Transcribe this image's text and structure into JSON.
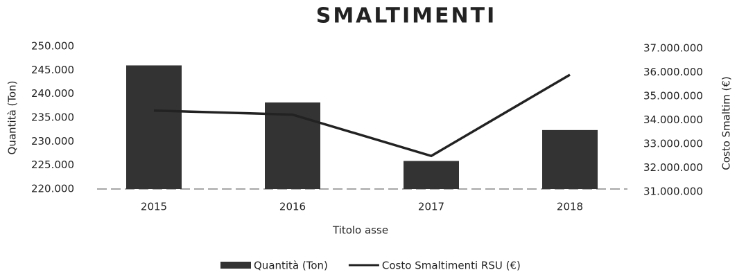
{
  "chart_data": {
    "type": "combo",
    "title": "SMALTIMENTI",
    "x_label": "Titolo asse",
    "y_label": "Quantità (Ton)",
    "y2_label": "Costo Smaltim (€)",
    "categories": [
      "2015",
      "2016",
      "2017",
      "2018"
    ],
    "series": [
      {
        "name": "Quantità (Ton)",
        "type": "bar",
        "color": "#333333",
        "values": [
          246000,
          238200,
          225900,
          232400
        ]
      },
      {
        "name": "Costo Smaltimenti RSU (€)",
        "type": "line",
        "axis": "y2",
        "color": "#222222",
        "values": [
          34400000,
          34230000,
          32500000,
          35900000
        ]
      }
    ],
    "ylim": [
      220000,
      250000
    ],
    "yticks": [
      {
        "value": 220000,
        "label": "220.000"
      },
      {
        "value": 225000,
        "label": "225.000"
      },
      {
        "value": 230000,
        "label": "230.000"
      },
      {
        "value": 235000,
        "label": "235.000"
      },
      {
        "value": 240000,
        "label": "240.000"
      },
      {
        "value": 245000,
        "label": "245.000"
      },
      {
        "value": 250000,
        "label": "250.000"
      }
    ],
    "y2lim": [
      31000000,
      37000000
    ],
    "y2ticks": [
      {
        "value": 31000000,
        "label": "31.000.000"
      },
      {
        "value": 32000000,
        "label": "32.000.000"
      },
      {
        "value": 33000000,
        "label": "33.000.000"
      },
      {
        "value": 34000000,
        "label": "34.000.000"
      },
      {
        "value": 35000000,
        "label": "35.000.000"
      },
      {
        "value": 36000000,
        "label": "36.000.000"
      },
      {
        "value": 37000000,
        "label": "37.000.000"
      }
    ],
    "legend": "bottom"
  }
}
